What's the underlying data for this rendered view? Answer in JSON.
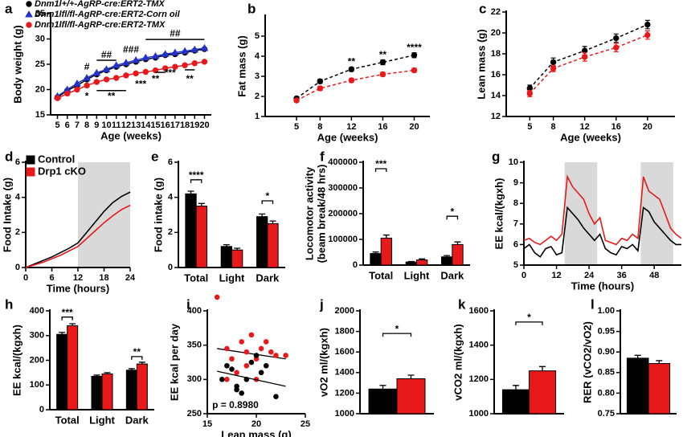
{
  "chart_data": [
    {
      "type": "line",
      "label": "a",
      "ylabel": "Body weight (g)",
      "xlabel": "Age (weeks)",
      "markers": true,
      "dashed": false,
      "x": [
        5,
        6,
        7,
        8,
        9,
        10,
        11,
        12,
        13,
        14,
        15,
        16,
        17,
        18,
        19,
        20
      ],
      "xlim": [
        4.3,
        20.7
      ],
      "xticks": [
        5,
        6,
        7,
        8,
        9,
        10,
        11,
        12,
        13,
        14,
        15,
        16,
        17,
        18,
        19,
        20
      ],
      "ylim": [
        15,
        35
      ],
      "yticks": [
        15,
        20,
        25,
        30,
        35
      ],
      "legend": "top-left",
      "series": [
        {
          "name": "Dnm1l+/+-AgRP-cre:ERT2-TMX",
          "color": "#000000",
          "marker": "circle",
          "values": [
            18.5,
            19.8,
            20.8,
            22,
            23,
            23.8,
            24.5,
            25,
            25.5,
            26,
            26.3,
            26.8,
            27,
            27.3,
            27.7,
            28
          ]
        },
        {
          "name": "Dnm1lfl/fl-AgRP-cre:ERT2-Corn oil",
          "color": "#2233cc",
          "marker": "triangle",
          "values": [
            18.7,
            20,
            21.2,
            22.3,
            23.3,
            24,
            24.8,
            25.3,
            25.8,
            26.3,
            26.6,
            27,
            27.3,
            27.6,
            27.9,
            28.2
          ]
        },
        {
          "name": "Dnm1lfl/fl-AgRP-cre:ERT2-TMX",
          "color": "#e8191b",
          "marker": "circle",
          "values": [
            18.3,
            19.2,
            20,
            20.8,
            21.5,
            22,
            22.3,
            22.8,
            23.2,
            23.5,
            23.8,
            24.2,
            24.5,
            24.8,
            25.2,
            25.5
          ]
        }
      ],
      "annotations": [
        {
          "text": "#",
          "x": 8,
          "y": 24.4
        },
        {
          "text": "##",
          "x": 10,
          "y": 26.8
        },
        {
          "text": "###",
          "x": 12.5,
          "y": 27.8
        },
        {
          "text": "##",
          "x": 17,
          "y": 31
        },
        {
          "text": "*",
          "x": 8,
          "y": 18.6
        },
        {
          "text": "**",
          "x": 10.5,
          "y": 18.6
        },
        {
          "text": "***",
          "x": 13.5,
          "y": 21
        },
        {
          "text": "**",
          "x": 15,
          "y": 22
        },
        {
          "text": "***",
          "x": 16.5,
          "y": 23.2
        },
        {
          "text": "**",
          "x": 18.5,
          "y": 22
        }
      ],
      "brackets": [
        {
          "x": [
            9,
            11
          ],
          "y": 25.8
        },
        {
          "x": [
            14,
            20
          ],
          "y": 29.9
        },
        {
          "x": [
            9,
            12
          ],
          "y": 19.8
        },
        {
          "x": [
            15,
            16
          ],
          "y": 23.4
        },
        {
          "x": [
            18,
            19
          ],
          "y": 23.9
        }
      ]
    },
    {
      "type": "line",
      "label": "b",
      "ylabel": "Fat mass (g)",
      "xlabel": "Age (weeks)",
      "markers": true,
      "dashed": true,
      "x": [
        5,
        8,
        12,
        16,
        20
      ],
      "xlim": [
        1,
        22
      ],
      "xticks": [
        5,
        8,
        12,
        16,
        20
      ],
      "ylim": [
        1,
        6
      ],
      "yticks": [
        1,
        2,
        3,
        4,
        5
      ],
      "series": [
        {
          "color": "#000000",
          "marker": "circle",
          "values": [
            1.9,
            2.75,
            3.35,
            3.7,
            4.05
          ],
          "errors": [
            0.08,
            0.1,
            0.1,
            0.12,
            0.12
          ]
        },
        {
          "color": "#e8191b",
          "marker": "circle",
          "values": [
            1.8,
            2.4,
            2.8,
            3.1,
            3.3
          ],
          "errors": [
            0.08,
            0.1,
            0.1,
            0.1,
            0.1
          ]
        }
      ],
      "annotations": [
        {
          "text": "**",
          "x": 12,
          "y": 3.7
        },
        {
          "text": "**",
          "x": 16,
          "y": 4.05
        },
        {
          "text": "****",
          "x": 20,
          "y": 4.4
        }
      ]
    },
    {
      "type": "line",
      "label": "c",
      "ylabel": "Lean mass (g)",
      "xlabel": "Age (weeks)",
      "markers": true,
      "dashed": true,
      "x": [
        5,
        8,
        12,
        16,
        20
      ],
      "xlim": [
        2,
        23.5
      ],
      "xticks": [
        5,
        8,
        12,
        16,
        20
      ],
      "ylim": [
        12,
        22
      ],
      "yticks": [
        12,
        14,
        16,
        18,
        20,
        22
      ],
      "series": [
        {
          "color": "#000000",
          "marker": "circle",
          "values": [
            14.7,
            17.2,
            18.3,
            19.5,
            20.8
          ],
          "errors": [
            0.3,
            0.4,
            0.4,
            0.4,
            0.4
          ]
        },
        {
          "color": "#e8191b",
          "marker": "circle",
          "values": [
            14.2,
            16.6,
            17.7,
            18.6,
            19.8
          ],
          "errors": [
            0.3,
            0.3,
            0.4,
            0.4,
            0.4
          ]
        }
      ]
    },
    {
      "type": "line",
      "label": "d",
      "ylabel": "Food Intake (g)",
      "xlabel": "Time (hours)",
      "markers": false,
      "dashed": false,
      "x": [
        0,
        2,
        4,
        6,
        8,
        10,
        12,
        14,
        16,
        18,
        20,
        22,
        24
      ],
      "xlim": [
        0,
        24
      ],
      "xticks": [
        0,
        6,
        12,
        18,
        24
      ],
      "ylim": [
        0,
        6
      ],
      "yticks": [
        0,
        2,
        4,
        6
      ],
      "shaded": [
        [
          12,
          24
        ]
      ],
      "legend": "top-left",
      "legend_marker": "square",
      "series": [
        {
          "name": "Control",
          "color": "#000000",
          "values": [
            0,
            0.2,
            0.4,
            0.6,
            0.85,
            1.1,
            1.4,
            2.0,
            2.6,
            3.2,
            3.7,
            4.05,
            4.3
          ]
        },
        {
          "name": "Drp1 cKO",
          "color": "#e8191b",
          "values": [
            0,
            0.15,
            0.3,
            0.5,
            0.7,
            0.95,
            1.2,
            1.65,
            2.1,
            2.55,
            2.95,
            3.3,
            3.55
          ]
        }
      ]
    },
    {
      "type": "bar",
      "label": "e",
      "ylabel": "Food intake (g)",
      "categories": [
        "Total",
        "Light",
        "Dark"
      ],
      "ylim": [
        0,
        6
      ],
      "yticks": [
        0,
        2,
        4,
        6
      ],
      "series": [
        {
          "color": "#000000",
          "values": [
            4.2,
            1.2,
            2.9
          ],
          "errors": [
            0.15,
            0.1,
            0.15
          ]
        },
        {
          "color": "#e8191b",
          "values": [
            3.5,
            1.0,
            2.5
          ],
          "errors": [
            0.15,
            0.1,
            0.15
          ]
        }
      ],
      "significance": [
        {
          "text": "****",
          "category": 0,
          "y": 5.0
        },
        {
          "text": "*",
          "category": 2,
          "y": 3.8
        }
      ]
    },
    {
      "type": "bar",
      "label": "f",
      "ylabel": [
        "Locomotor activity",
        "(beam break/48 hrs)"
      ],
      "categories": [
        "Total",
        "Light",
        "Dark"
      ],
      "ylim": [
        0,
        400000
      ],
      "yticks": [
        0,
        100000,
        200000,
        300000,
        400000
      ],
      "series": [
        {
          "color": "#000000",
          "values": [
            45000,
            12000,
            32000
          ],
          "errors": [
            6000,
            2000,
            5000
          ]
        },
        {
          "color": "#e8191b",
          "values": [
            105000,
            20000,
            80000
          ],
          "errors": [
            12000,
            4000,
            10000
          ]
        }
      ],
      "significance": [
        {
          "text": "***",
          "category": 0,
          "y": 375000
        },
        {
          "text": "*",
          "category": 2,
          "y": 190000
        }
      ]
    },
    {
      "type": "line",
      "label": "g",
      "ylabel": "EE kcal/(kgxh)",
      "xlabel": "Time (hours)",
      "markers": false,
      "dashed": false,
      "x": [
        0,
        2,
        4,
        6,
        8,
        10,
        12,
        14,
        16,
        18,
        20,
        22,
        24,
        26,
        28,
        30,
        32,
        34,
        36,
        38,
        40,
        42,
        44,
        46,
        48,
        50,
        52,
        54,
        56,
        58
      ],
      "xlim": [
        0,
        58
      ],
      "xticks": [
        0,
        12,
        24,
        36,
        48
      ],
      "ylim": [
        5,
        10
      ],
      "yticks": [
        5,
        6,
        7,
        8,
        9,
        10
      ],
      "shaded": [
        [
          15,
          27
        ],
        [
          43,
          55
        ]
      ],
      "series": [
        {
          "color": "#000000",
          "values": [
            5.8,
            6,
            5.6,
            5.4,
            5.8,
            5.9,
            5.5,
            5.6,
            7.8,
            7.5,
            7.2,
            6.8,
            6.5,
            6.2,
            6.5,
            5.8,
            5.6,
            5.5,
            5.9,
            5.8,
            6,
            5.7,
            7.8,
            7.6,
            7.1,
            6.8,
            6.5,
            6.2,
            6,
            6
          ]
        },
        {
          "color": "#e8191b",
          "values": [
            6.2,
            6.3,
            6.1,
            6.0,
            6.2,
            6.4,
            6.2,
            6.5,
            9.3,
            8.8,
            8.5,
            8.2,
            7.5,
            7,
            7.3,
            6.2,
            6.1,
            6,
            6.3,
            6.2,
            6.5,
            6.3,
            9.3,
            8.6,
            8.4,
            8.2,
            7.5,
            6.8,
            6.5,
            6.3
          ]
        }
      ]
    },
    {
      "type": "bar",
      "label": "h",
      "ylabel": "EE kcal/(kgxh)",
      "categories": [
        "Total",
        "Light",
        "Dark"
      ],
      "ylim": [
        0,
        400
      ],
      "yticks": [
        0,
        100,
        200,
        300,
        400
      ],
      "series": [
        {
          "color": "#000000",
          "values": [
            305,
            135,
            160
          ],
          "errors": [
            8,
            5,
            6
          ]
        },
        {
          "color": "#e8191b",
          "values": [
            340,
            145,
            185
          ],
          "errors": [
            8,
            5,
            7
          ]
        }
      ],
      "significance": [
        {
          "text": "***",
          "category": 0,
          "y": 375
        },
        {
          "text": "**",
          "category": 2,
          "y": 215
        }
      ]
    },
    {
      "type": "scatter",
      "label": "i",
      "ylabel": "EE kcal per day",
      "xlabel": "Lean mass (g)",
      "xlim": [
        15,
        25
      ],
      "xticks": [
        15,
        20,
        25
      ],
      "ylim": [
        250,
        400
      ],
      "yticks": [
        250,
        300,
        350,
        400
      ],
      "series": [
        {
          "color": "#e8191b",
          "x": [
            16,
            17,
            17.5,
            18,
            18.5,
            19,
            19.5,
            20,
            20.5,
            21,
            21.5,
            22,
            17,
            19,
            20,
            23
          ],
          "values": [
            420,
            345,
            330,
            310,
            355,
            340,
            365,
            330,
            345,
            355,
            340,
            335,
            300,
            320,
            300,
            335
          ],
          "fit": [
            [
              16,
              345
            ],
            [
              23,
              330
            ]
          ]
        },
        {
          "color": "#000000",
          "x": [
            16.5,
            17,
            17.5,
            18,
            18.5,
            19,
            19.5,
            20,
            20.5,
            21,
            22,
            18
          ],
          "values": [
            300,
            320,
            315,
            290,
            280,
            300,
            325,
            335,
            310,
            320,
            275,
            285
          ],
          "fit": [
            [
              16,
              312
            ],
            [
              23,
              290
            ]
          ]
        }
      ],
      "annotations": [
        {
          "text": "p = 0.8980",
          "x": 15.5,
          "y": 262
        }
      ]
    },
    {
      "type": "bar",
      "label": "j",
      "ylabel": "vO2 ml/(kgxh)",
      "ylim": [
        1000,
        2000
      ],
      "yticks": [
        1000,
        1200,
        1400,
        1600,
        1800,
        2000
      ],
      "series": [
        {
          "color": "#000000",
          "values": [
            1240
          ],
          "errors": [
            35
          ]
        },
        {
          "color": "#e8191b",
          "values": [
            1340
          ],
          "errors": [
            35
          ]
        }
      ],
      "significance": [
        {
          "text": "*",
          "category": 0,
          "y": 1780
        }
      ]
    },
    {
      "type": "bar",
      "label": "k",
      "ylabel": "vCO2 ml/(kgxh)",
      "ylim": [
        1000,
        1600
      ],
      "yticks": [
        1000,
        1200,
        1400,
        1600
      ],
      "series": [
        {
          "color": "#000000",
          "values": [
            1140
          ],
          "errors": [
            25
          ]
        },
        {
          "color": "#e8191b",
          "values": [
            1250
          ],
          "errors": [
            25
          ]
        }
      ],
      "significance": [
        {
          "text": "*",
          "category": 0,
          "y": 1535
        }
      ]
    },
    {
      "type": "bar",
      "label": "l",
      "ylabel": "RER (vCO2/vO2)",
      "ylim": [
        0.75,
        1.0
      ],
      "yticks": [
        0.75,
        {
          "value": 0.8,
          "label": "0.80"
        },
        0.85,
        {
          "value": 0.9,
          "label": "0.90"
        },
        0.95,
        {
          "value": 1.0,
          "label": "1.00"
        }
      ],
      "series": [
        {
          "color": "#000000",
          "values": [
            0.885
          ],
          "errors": [
            0.007
          ]
        },
        {
          "color": "#e8191b",
          "values": [
            0.872
          ],
          "errors": [
            0.007
          ]
        }
      ]
    }
  ]
}
